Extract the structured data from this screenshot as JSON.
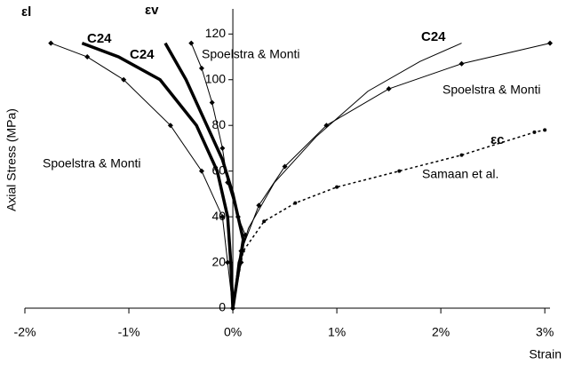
{
  "chart_data": {
    "type": "line",
    "y_label": "Axial Stress (MPa)",
    "x_label": "Strain",
    "xlim": [
      -2,
      3.05
    ],
    "ylim": [
      0,
      131
    ],
    "xticks": [
      {
        "value": -2,
        "label": "-2%"
      },
      {
        "value": -1,
        "label": "-1%"
      },
      {
        "value": 0,
        "label": "0%"
      },
      {
        "value": 1,
        "label": "1%"
      },
      {
        "value": 2,
        "label": "2%"
      },
      {
        "value": 3,
        "label": "3%"
      }
    ],
    "yticks": [
      0,
      20,
      40,
      60,
      80,
      100,
      120
    ],
    "series": [
      {
        "color": "#000000",
        "style": "thick",
        "x": [
          0,
          -0.02,
          -0.05,
          -0.15,
          -0.35,
          -0.7,
          -1.1,
          -1.45
        ],
        "values": [
          0,
          20,
          40,
          60,
          80,
          100,
          110,
          116
        ]
      },
      {
        "color": "#000000",
        "style": "markers",
        "x": [
          0,
          -0.05,
          -0.1,
          -0.3,
          -0.6,
          -1.05,
          -1.4,
          -1.75
        ],
        "values": [
          0,
          20,
          40,
          60,
          80,
          100,
          110,
          116
        ]
      },
      {
        "color": "#000000",
        "style": "thick",
        "x": [
          0,
          0.05,
          0.1,
          0.05,
          0,
          -0.1,
          -0.25,
          -0.45,
          -0.65
        ],
        "values": [
          0,
          15,
          30,
          40,
          50,
          65,
          80,
          100,
          116
        ]
      },
      {
        "color": "#000000",
        "style": "markers",
        "x": [
          0,
          0.08,
          0.12,
          0.05,
          -0.05,
          -0.1,
          -0.2,
          -0.3,
          -0.4
        ],
        "values": [
          0,
          20,
          32,
          40,
          55,
          70,
          90,
          105,
          116
        ]
      },
      {
        "color": "#000000",
        "style": "thin",
        "x": [
          0,
          0.05,
          0.15,
          0.4,
          0.8,
          1.3,
          1.8,
          2.2
        ],
        "values": [
          0,
          20,
          35,
          55,
          75,
          95,
          108,
          116
        ]
      },
      {
        "color": "#000000",
        "style": "markers",
        "x": [
          0,
          0.08,
          0.25,
          0.5,
          0.9,
          1.5,
          2.2,
          3.05
        ],
        "values": [
          0,
          25,
          45,
          62,
          80,
          96,
          107,
          116
        ]
      },
      {
        "color": "#000000",
        "style": "dashed",
        "x": [
          0,
          0.1,
          0.3,
          0.6,
          1.0,
          1.6,
          2.2,
          2.9,
          3.0
        ],
        "values": [
          0,
          25,
          38,
          46,
          53,
          60,
          67,
          77,
          78
        ]
      }
    ],
    "annotations": [
      "εl",
      "C24",
      "εv",
      "C24",
      "Spoelstra & Monti",
      "C24",
      "Spoelstra & Monti",
      "εc",
      "Spoelstra & Monti",
      "Samaan et al."
    ]
  }
}
